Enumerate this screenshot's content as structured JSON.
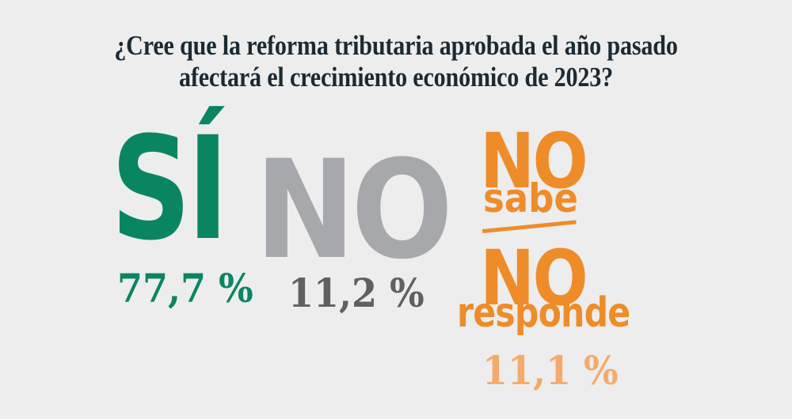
{
  "title": {
    "line1": "¿Cree que la reforma tributaria aprobada el año pasado",
    "line2": "afectará el crecimiento económico de 2023?"
  },
  "answers": [
    {
      "label": "SÍ",
      "percent": "77,7 %",
      "color": "#0a8562"
    },
    {
      "label": "NO",
      "percent": "11,2 %",
      "color": "#a7a8ab",
      "percent_color": "#5f6062"
    },
    {
      "label_top": "NO",
      "label_top_sub": "sabe",
      "label_bottom": "NO",
      "label_bottom_sub": "responde",
      "percent": "11,1 %",
      "color": "#ee8c2a",
      "percent_color": "#f4ab6a"
    }
  ],
  "colors": {
    "background": "#ededed",
    "title": "#1c2a33"
  },
  "chart_data": {
    "type": "pie",
    "title": "¿Cree que la reforma tributaria aprobada el año pasado afectará el crecimiento económico de 2023?",
    "categories": [
      "Sí",
      "No",
      "No sabe / No responde"
    ],
    "values": [
      77.7,
      11.2,
      11.1
    ],
    "unit": "%",
    "colors": [
      "#0a8562",
      "#a7a8ab",
      "#ee8c2a"
    ],
    "xlabel": "",
    "ylabel": "",
    "legend": "none",
    "grid": false
  }
}
